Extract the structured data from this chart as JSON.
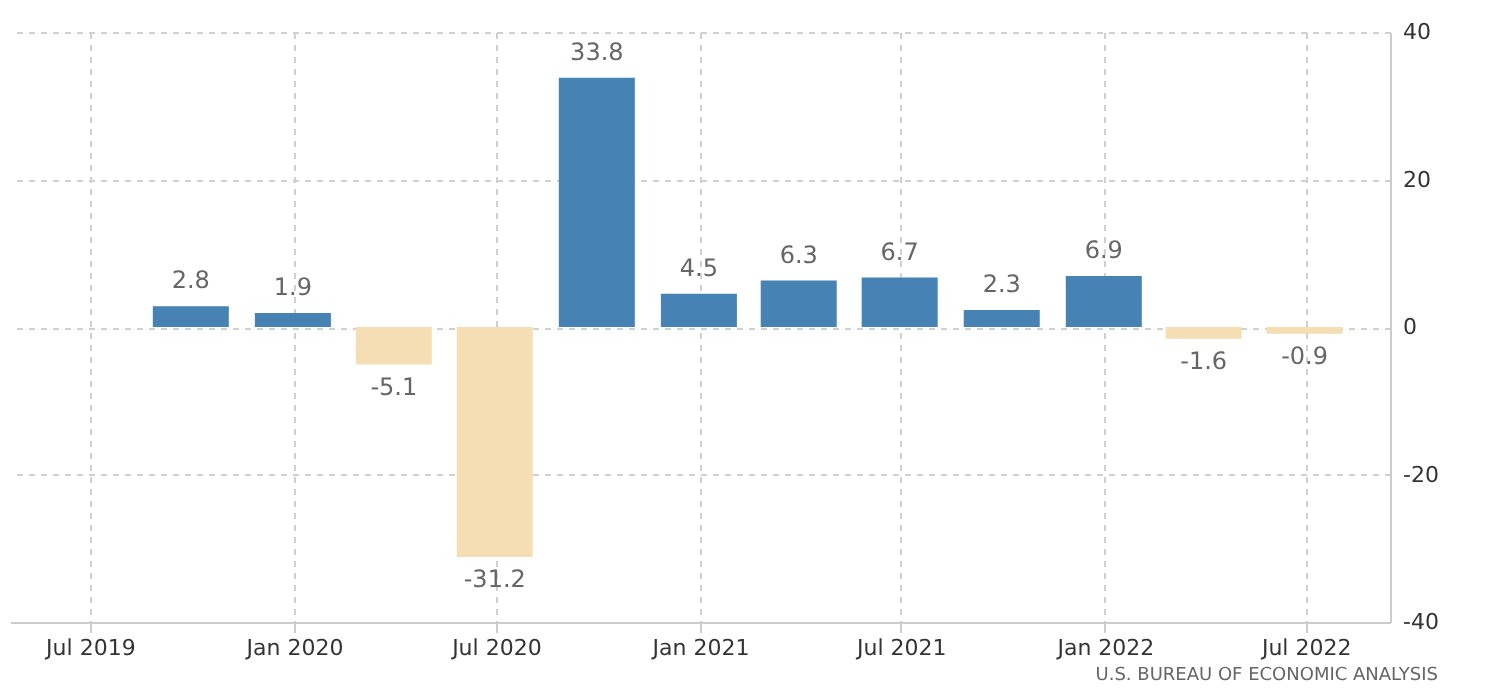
{
  "chart_data": {
    "type": "bar",
    "x": [
      "2019-09-30",
      "2019-12-31",
      "2020-03-31",
      "2020-06-30",
      "2020-09-30",
      "2020-12-31",
      "2021-03-31",
      "2021-06-30",
      "2021-09-30",
      "2021-12-31",
      "2022-03-31",
      "2022-06-30"
    ],
    "values": [
      2.8,
      1.9,
      -5.1,
      -31.2,
      33.8,
      4.5,
      6.3,
      6.7,
      2.3,
      6.9,
      -1.6,
      -0.9
    ],
    "colors": [
      "#4682b4",
      "#4682b4",
      "#f5deb3",
      "#f5deb3",
      "#4682b4",
      "#4682b4",
      "#4682b4",
      "#4682b4",
      "#4682b4",
      "#4682b4",
      "#f5deb3",
      "#f5deb3"
    ],
    "data_labels": true,
    "xlim": [
      "2019-04-20",
      "2022-09-15"
    ],
    "xticks": [
      {
        "value": "2019-07-01",
        "label": "Jul 2019"
      },
      {
        "value": "2020-01-01",
        "label": "Jan 2020"
      },
      {
        "value": "2020-07-01",
        "label": "Jul 2020"
      },
      {
        "value": "2021-01-01",
        "label": "Jan 2021"
      },
      {
        "value": "2021-07-01",
        "label": "Jul 2021"
      },
      {
        "value": "2022-01-01",
        "label": "Jan 2022"
      },
      {
        "value": "2022-07-01",
        "label": "Jul 2022"
      }
    ],
    "ylim": [
      -40,
      40
    ],
    "yticks": [
      -40,
      -20,
      0,
      20,
      40
    ],
    "grid": true,
    "annotations": [
      "U.S. BUREAU OF ECONOMIC ANALYSIS"
    ]
  }
}
